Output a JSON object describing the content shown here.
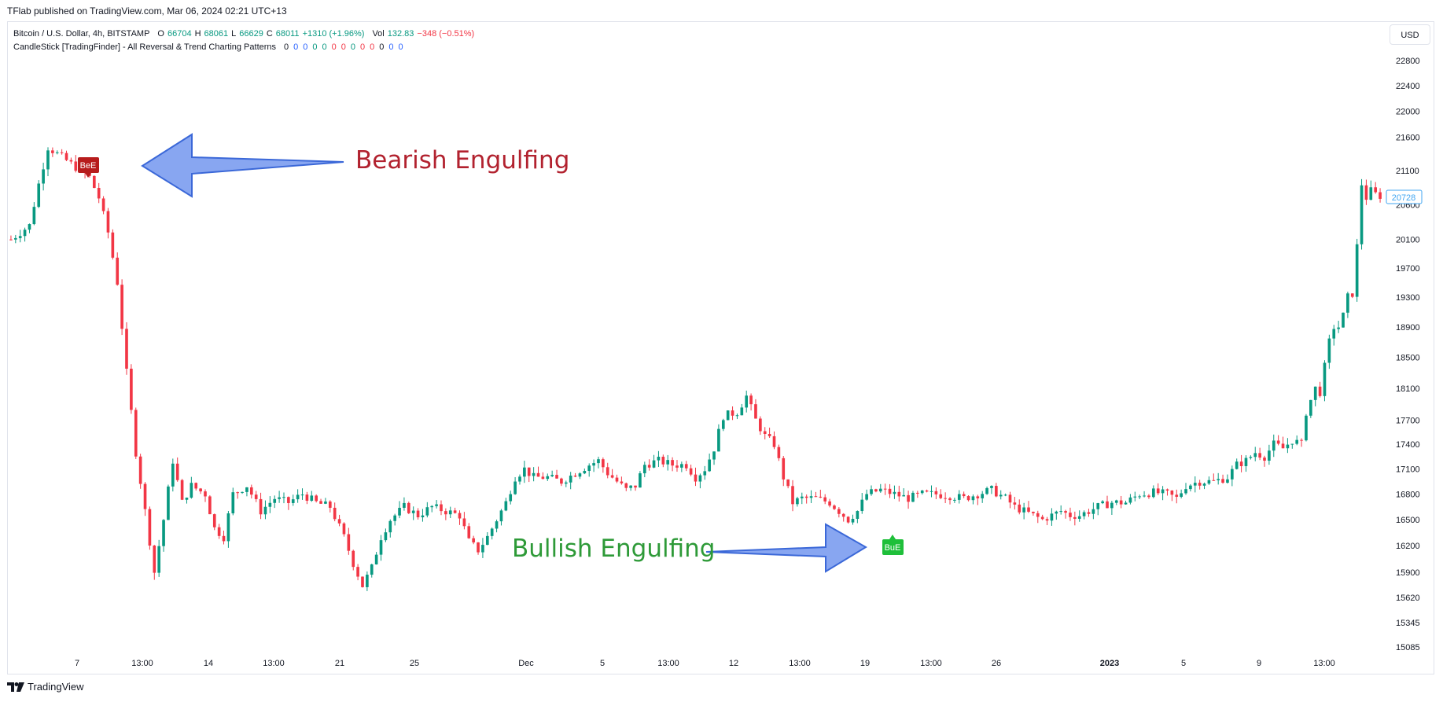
{
  "published": "TFlab published on TradingView.com, Mar 06, 2024 02:21 UTC+13",
  "legend": {
    "symbol": "Bitcoin / U.S. Dollar, 4h, BITSTAMP",
    "o_label": "O",
    "o": "66704",
    "h_label": "H",
    "h": "68061",
    "l_label": "L",
    "l": "66629",
    "c_label": "C",
    "c": "68011",
    "change": "+1310 (+1.96%)",
    "vol_label": "Vol",
    "vol": "132.83",
    "vol_change": "−348 (−0.51%)",
    "indicator": "CandleStick [TradingFinder] - All Reversal & Trend Charting Patterns",
    "indicator_values": [
      "0",
      "0",
      "0",
      "0",
      "0",
      "0",
      "0",
      "0",
      "0",
      "0",
      "0",
      "0",
      "0"
    ],
    "indicator_colors": [
      "#131722",
      "#2962ff",
      "#2962ff",
      "#089981",
      "#089981",
      "#f23645",
      "#f23645",
      "#089981",
      "#f23645",
      "#f23645"
    ]
  },
  "currency": "USD",
  "last_price_label": "20728",
  "annotations": {
    "bearish_text": "Bearish Engulfing",
    "bullish_text": "Bullish Engulfing",
    "bearish_badge": "BeE",
    "bullish_badge": "BuE"
  },
  "colors": {
    "up": "#089981",
    "down": "#f23645",
    "bearish_text": "#b2222f",
    "bullish_text": "#2e9a38",
    "arrow_fill": "#7b9cf0",
    "arrow_stroke": "#3b68d8",
    "bearish_badge": "#b71c1c",
    "bullish_badge": "#1fbf3a",
    "last_price": "#41a6f2"
  },
  "footer_brand": "TradingView",
  "chart_data": {
    "type": "candlestick",
    "title": "Bitcoin / U.S. Dollar, 4h, BITSTAMP",
    "y_scale": "logarithmic",
    "y_ticks": [
      22800,
      22400,
      22000,
      21600,
      21100,
      20600,
      20100,
      19700,
      19300,
      18900,
      18500,
      18100,
      17700,
      17400,
      17100,
      16800,
      16500,
      16200,
      15900,
      15620,
      15345,
      15085
    ],
    "x_tick_labels": [
      "7",
      "13:00",
      "14",
      "13:00",
      "21",
      "25",
      "Dec",
      "5",
      "13:00",
      "12",
      "13:00",
      "19",
      "13:00",
      "26",
      "2023",
      "5",
      "9",
      "13:00"
    ],
    "x_tick_bold": [
      "2023"
    ],
    "price_path": [
      [
        0,
        20100
      ],
      [
        4,
        20300
      ],
      [
        6,
        20900
      ],
      [
        8,
        21450
      ],
      [
        11,
        21300
      ],
      [
        14,
        21150
      ],
      [
        17,
        21000
      ],
      [
        19,
        20700
      ],
      [
        21,
        20200
      ],
      [
        23,
        19500
      ],
      [
        25,
        18300
      ],
      [
        27,
        17300
      ],
      [
        29,
        16600
      ],
      [
        31,
        15900
      ],
      [
        33,
        16500
      ],
      [
        35,
        17200
      ],
      [
        37,
        16700
      ],
      [
        39,
        16900
      ],
      [
        42,
        16800
      ],
      [
        44,
        16400
      ],
      [
        46,
        16300
      ],
      [
        48,
        16800
      ],
      [
        51,
        16900
      ],
      [
        54,
        16600
      ],
      [
        57,
        16750
      ],
      [
        60,
        16700
      ],
      [
        63,
        16800
      ],
      [
        66,
        16700
      ],
      [
        69,
        16650
      ],
      [
        72,
        16300
      ],
      [
        74,
        16000
      ],
      [
        76,
        15750
      ],
      [
        78,
        15950
      ],
      [
        80,
        16300
      ],
      [
        82,
        16500
      ],
      [
        85,
        16650
      ],
      [
        88,
        16550
      ],
      [
        91,
        16650
      ],
      [
        94,
        16600
      ],
      [
        97,
        16550
      ],
      [
        99,
        16250
      ],
      [
        101,
        16150
      ],
      [
        103,
        16300
      ],
      [
        105,
        16500
      ],
      [
        107,
        16700
      ],
      [
        109,
        17000
      ],
      [
        111,
        17100
      ],
      [
        113,
        17000
      ],
      [
        116,
        17000
      ],
      [
        119,
        16950
      ],
      [
        122,
        17050
      ],
      [
        125,
        17150
      ],
      [
        127,
        17200
      ],
      [
        129,
        17050
      ],
      [
        131,
        16950
      ],
      [
        133,
        16850
      ],
      [
        135,
        16900
      ],
      [
        137,
        17150
      ],
      [
        140,
        17200
      ],
      [
        143,
        17150
      ],
      [
        146,
        17150
      ],
      [
        148,
        17000
      ],
      [
        150,
        17100
      ],
      [
        152,
        17350
      ],
      [
        154,
        17750
      ],
      [
        157,
        17800
      ],
      [
        159,
        18000
      ],
      [
        161,
        17700
      ],
      [
        163,
        17500
      ],
      [
        165,
        17400
      ],
      [
        167,
        17000
      ],
      [
        169,
        16700
      ],
      [
        171,
        16750
      ],
      [
        174,
        16750
      ],
      [
        177,
        16700
      ],
      [
        179,
        16600
      ],
      [
        181,
        16500
      ],
      [
        183,
        16600
      ],
      [
        185,
        16800
      ],
      [
        188,
        16850
      ],
      [
        191,
        16800
      ],
      [
        194,
        16750
      ],
      [
        197,
        16800
      ],
      [
        200,
        16800
      ],
      [
        203,
        16780
      ],
      [
        206,
        16750
      ],
      [
        209,
        16800
      ],
      [
        212,
        16850
      ],
      [
        215,
        16750
      ],
      [
        217,
        16650
      ],
      [
        219,
        16600
      ],
      [
        221,
        16550
      ],
      [
        223,
        16500
      ],
      [
        225,
        16550
      ],
      [
        227,
        16600
      ],
      [
        229,
        16550
      ],
      [
        231,
        16550
      ],
      [
        233,
        16600
      ],
      [
        235,
        16650
      ],
      [
        238,
        16700
      ],
      [
        241,
        16700
      ],
      [
        244,
        16800
      ],
      [
        247,
        16820
      ],
      [
        250,
        16800
      ],
      [
        252,
        16750
      ],
      [
        254,
        16900
      ],
      [
        257,
        16950
      ],
      [
        260,
        16950
      ],
      [
        263,
        17000
      ],
      [
        265,
        17150
      ],
      [
        267,
        17200
      ],
      [
        269,
        17300
      ],
      [
        271,
        17250
      ],
      [
        273,
        17400
      ],
      [
        275,
        17350
      ],
      [
        277,
        17450
      ],
      [
        279,
        17400
      ],
      [
        280,
        17800
      ],
      [
        282,
        18100
      ],
      [
        283,
        18050
      ],
      [
        285,
        18700
      ],
      [
        286,
        18900
      ],
      [
        287,
        18900
      ],
      [
        288,
        19050
      ],
      [
        289,
        19300
      ],
      [
        290,
        19350
      ],
      [
        291,
        20000
      ],
      [
        292,
        20900
      ],
      [
        293,
        20700
      ],
      [
        294,
        20800
      ],
      [
        295,
        20750
      ],
      [
        296,
        20728
      ]
    ]
  }
}
